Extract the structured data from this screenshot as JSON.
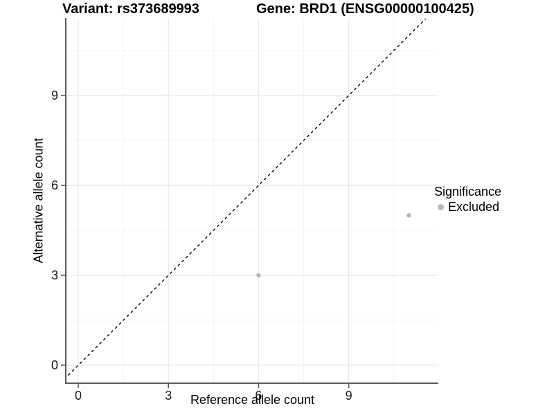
{
  "figure": {
    "title_left": "Variant: rs373689993",
    "title_right": "Gene: BRD1 (ENSG00000100425)"
  },
  "chart_data": {
    "type": "scatter",
    "title": "Variant: rs373689993   Gene: BRD1 (ENSG00000100425)",
    "xlabel": "Reference allele count",
    "ylabel": "Alternative allele count",
    "xticks": [
      0,
      3,
      6,
      9
    ],
    "yticks": [
      0,
      3,
      6,
      9
    ],
    "minor_gridlines_x": [
      1.5,
      4.5,
      7.5,
      10.5
    ],
    "minor_gridlines_y": [
      1.5,
      4.5,
      7.5,
      10.5
    ],
    "xlim": [
      -0.4,
      12.0
    ],
    "ylim": [
      -0.6,
      11.6
    ],
    "grid": "on",
    "legend": {
      "title": "Significance",
      "position": "right",
      "items": [
        {
          "label": "Excluded",
          "color": "#b8b8b8"
        }
      ]
    },
    "series": [
      {
        "name": "Excluded",
        "color": "#b8b8b8",
        "points": [
          {
            "x": 6,
            "y": 3
          },
          {
            "x": 11,
            "y": 5
          }
        ]
      }
    ],
    "reference_line": {
      "type": "identity y=x",
      "style": "dashed",
      "color": "#000000"
    }
  },
  "colors": {
    "background": "#ffffff",
    "axis": "#5b5b5b",
    "grid_major": "#e8e8e8",
    "grid_minor": "#f4f4f4",
    "tick_label": "#1a1a1a",
    "point": "#b8b8b8"
  }
}
